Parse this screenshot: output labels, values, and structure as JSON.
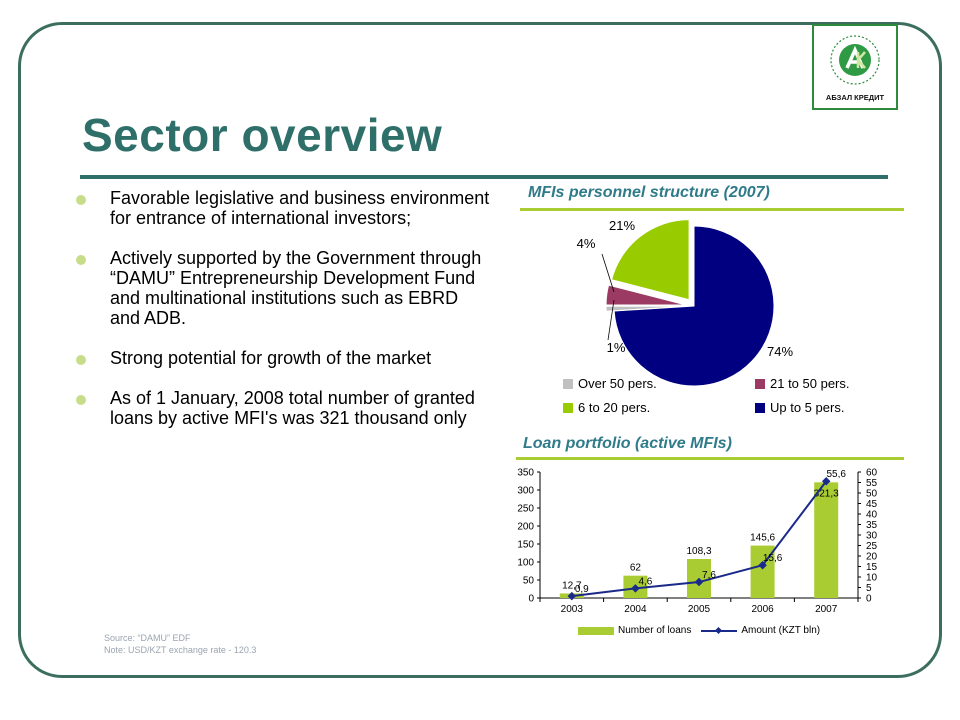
{
  "slide": {
    "title": "Sector overview",
    "logo_text": "АБЗАЛ КРЕДИТ",
    "bullets": [
      "Favorable legislative and business environment for entrance of international investors;",
      "Actively supported by the Government through “DAMU” Entrepreneurship Development Fund and multinational institutions such as EBRD and ADB.",
      "Strong potential for growth of the market",
      "As of 1 January, 2008 total number of granted loans by active MFI's was 321 thousand only"
    ],
    "source_line": "Source: “DAMU” EDF",
    "note_line": "Note:    USD/KZT exchange rate - 120.3"
  },
  "colors": {
    "frame": "#3c6e5f",
    "title": "#2f6f69",
    "section_title": "#2f7b8a",
    "accent_green": "#a9cc33",
    "line_blue": "#1a2a8a"
  },
  "chart_data": [
    {
      "type": "pie",
      "title": "MFIs personnel structure (2007)",
      "categories": [
        "Over 50 pers.",
        "21 to 50 pers.",
        "6 to 20 pers.",
        "Up to 5 pers."
      ],
      "values": [
        1,
        4,
        21,
        74
      ],
      "value_labels": [
        "1%",
        "4%",
        "21%",
        "74%"
      ],
      "colors": [
        "#c0c0c0",
        "#9b3b64",
        "#99cc00",
        "#000080"
      ],
      "legend": "bottom"
    },
    {
      "type": "bar",
      "title": "Loan portfolio (active MFIs)",
      "categories": [
        "2003",
        "2004",
        "2005",
        "2006",
        "2007"
      ],
      "series": [
        {
          "name": "Number of loans",
          "type": "bar",
          "axis": "left",
          "values": [
            12.7,
            62,
            108.3,
            145.6,
            321.3
          ],
          "labels": [
            "12,7",
            "62",
            "108,3",
            "145,6",
            "321,3"
          ]
        },
        {
          "name": "Amount (KZT bln)",
          "type": "line",
          "axis": "right",
          "values": [
            0.9,
            4.6,
            7.6,
            15.6,
            55.6
          ],
          "labels": [
            "0,9",
            "4,6",
            "7,6",
            "15,6",
            "55,6"
          ]
        }
      ],
      "y_left": {
        "range": [
          0,
          350
        ],
        "ticks": [
          "0",
          "50",
          "100",
          "150",
          "200",
          "250",
          "300",
          "350"
        ]
      },
      "y_right": {
        "range": [
          0,
          60
        ],
        "ticks": [
          "0",
          "5",
          "10",
          "15",
          "20",
          "25",
          "30",
          "35",
          "40",
          "45",
          "50",
          "55",
          "60"
        ]
      },
      "legend": "bottom",
      "grid": false
    }
  ]
}
